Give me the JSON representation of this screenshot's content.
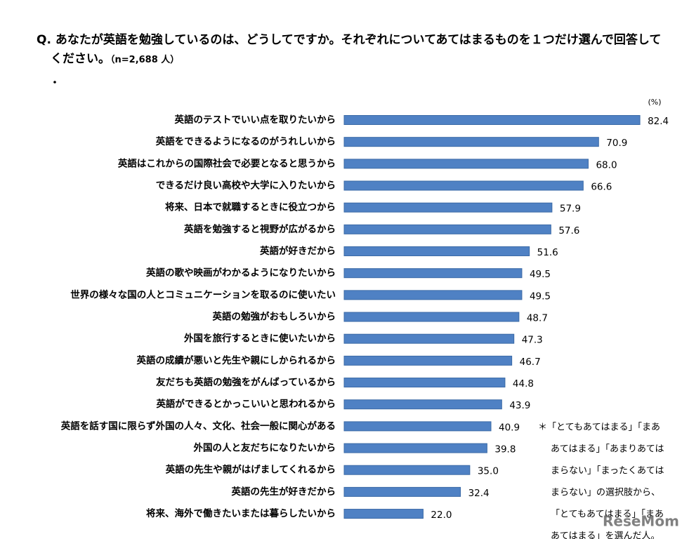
{
  "chart_data": {
    "type": "bar",
    "orientation": "horizontal",
    "title": "Q. あなたが英語を勉強しているのは、どうしてですか。それぞれについてあてはまるものを１つだけ選んで回答してください。",
    "subtitle": "（n=2,688 人）",
    "unit": "(%)",
    "color": "#4f81c4",
    "categories": [
      "英語のテストでいい点を取りたいから",
      "英語をできるようになるのがうれしいから",
      "英語はこれからの国際社会で必要となると思うから",
      "できるだけ良い高校や大学に入りたいから",
      "将来、日本で就職するときに役立つから",
      "英語を勉強すると視野が広がるから",
      "英語が好きだから",
      "英語の歌や映画がわかるようになりたいから",
      "世界の様々な国の人とコミュニケーションを取るのに使いたい",
      "英語の勉強がおもしろいから",
      "外国を旅行するときに使いたいから",
      "英語の成績が悪いと先生や親にしかられるから",
      "友だちも英語の勉強をがんばっているから",
      "英語ができるとかっこいいと思われるから",
      "英語を話す国に限らず外国の人々、文化、社会一般に関心がある",
      "外国の人と友だちになりたいから",
      "英語の先生や親がはげましてくれるから",
      "英語の先生が好きだから",
      "将来、海外で働きたいまたは暮らしたいから"
    ],
    "values": [
      82.4,
      70.9,
      68.0,
      66.6,
      57.9,
      57.6,
      51.6,
      49.5,
      49.5,
      48.7,
      47.3,
      46.7,
      44.8,
      43.9,
      40.9,
      39.8,
      35.0,
      32.4,
      22.0
    ],
    "value_labels": [
      "82.4",
      "70.9",
      "68.0",
      "66.6",
      "57.9",
      "57.6",
      "51.6",
      "49.5",
      "49.5",
      "48.7",
      "47.3",
      "46.7",
      "44.8",
      "43.9",
      "40.9",
      "39.8",
      "35.0",
      "32.4",
      "22.0"
    ],
    "footnote": [
      "＊「とてもあてはまる」「まあ",
      "あてはまる」「あまりあては",
      "まらない」「まったくあては",
      "まらない」の選択肢から、",
      "「とてもあてはまる」「まあ",
      "あてはまる」を選んだ人。"
    ],
    "watermark": "ReseMom"
  }
}
